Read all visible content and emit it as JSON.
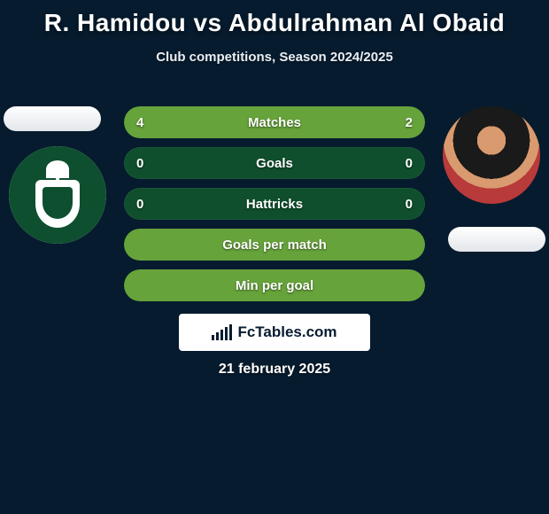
{
  "title": "R. Hamidou vs Abdulrahman Al Obaid",
  "subtitle": "Club competitions, Season 2024/2025",
  "date": "21 february 2025",
  "branding": {
    "text": "FcTables.com"
  },
  "colors": {
    "bg": "#061b2e",
    "bar_track": "#0f4f2d",
    "bar_fill": "#66a33a",
    "pill": "#ffffff",
    "team_badge": "#0e4f2f"
  },
  "rows": [
    {
      "label": "Matches",
      "left": "4",
      "right": "2",
      "left_pct": 66.7,
      "right_pct": 33.3
    },
    {
      "label": "Goals",
      "left": "0",
      "right": "0",
      "left_pct": 0,
      "right_pct": 0
    },
    {
      "label": "Hattricks",
      "left": "0",
      "right": "0",
      "left_pct": 0,
      "right_pct": 0
    },
    {
      "label": "Goals per match",
      "full": true
    },
    {
      "label": "Min per goal",
      "full": true
    }
  ]
}
